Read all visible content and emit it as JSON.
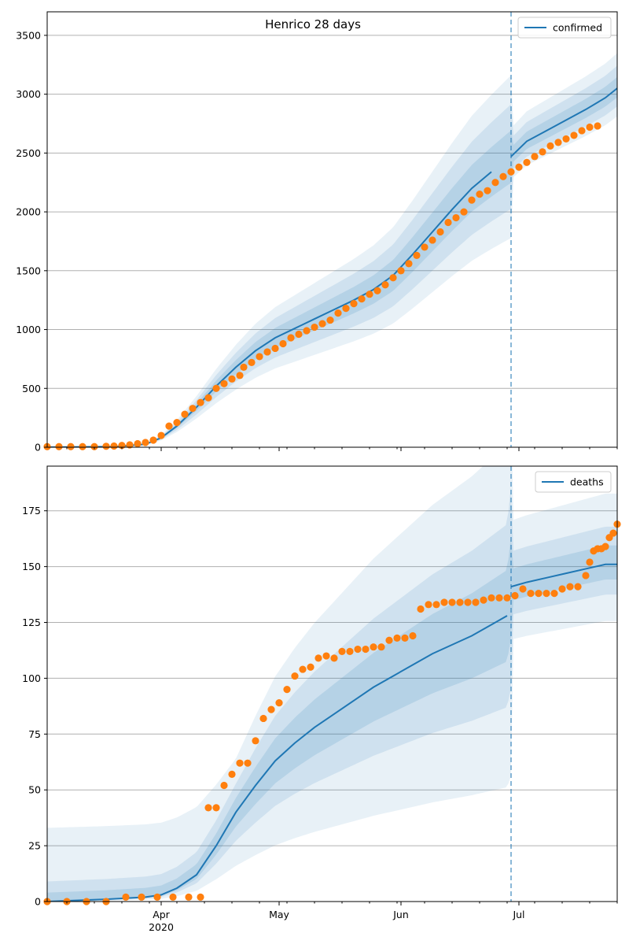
{
  "figure": {
    "title": "Henrico 28 days"
  },
  "chart_data": [
    {
      "type": "line",
      "panel": "top",
      "x_type": "date",
      "xlim": [
        "2020-03-03",
        "2020-07-26"
      ],
      "ylim": [
        0,
        3700
      ],
      "yticks": [
        0,
        500,
        1000,
        1500,
        2000,
        2500,
        3000,
        3500
      ],
      "grid": "horizontal",
      "legend_position": "top-right",
      "forecast_start": "2020-06-29",
      "colors": {
        "model": "#1f77b4",
        "observed": "#ff7f0e",
        "band": "#1f77b4"
      },
      "series": [
        {
          "name": "confirmed",
          "kind": "line",
          "points": [
            [
              "2020-03-03",
              0
            ],
            [
              "2020-03-20",
              5
            ],
            [
              "2020-03-28",
              25
            ],
            [
              "2020-04-01",
              80
            ],
            [
              "2020-04-05",
              180
            ],
            [
              "2020-04-10",
              340
            ],
            [
              "2020-04-15",
              520
            ],
            [
              "2020-04-20",
              680
            ],
            [
              "2020-04-25",
              820
            ],
            [
              "2020-04-30",
              930
            ],
            [
              "2020-05-05",
              1010
            ],
            [
              "2020-05-10",
              1090
            ],
            [
              "2020-05-15",
              1170
            ],
            [
              "2020-05-20",
              1250
            ],
            [
              "2020-05-25",
              1340
            ],
            [
              "2020-05-30",
              1460
            ],
            [
              "2020-06-04",
              1640
            ],
            [
              "2020-06-09",
              1830
            ],
            [
              "2020-06-14",
              2020
            ],
            [
              "2020-06-19",
              2200
            ],
            [
              "2020-06-24",
              2340
            ],
            [
              "2020-06-29",
              2470
            ],
            [
              "2020-07-03",
              2600
            ],
            [
              "2020-07-08",
              2690
            ],
            [
              "2020-07-13",
              2780
            ],
            [
              "2020-07-18",
              2870
            ],
            [
              "2020-07-23",
              2970
            ],
            [
              "2020-07-26",
              3050
            ]
          ]
        },
        {
          "name": "",
          "kind": "scatter",
          "points": [
            [
              "2020-03-03",
              5
            ],
            [
              "2020-03-06",
              5
            ],
            [
              "2020-03-09",
              5
            ],
            [
              "2020-03-12",
              5
            ],
            [
              "2020-03-15",
              5
            ],
            [
              "2020-03-18",
              8
            ],
            [
              "2020-03-20",
              10
            ],
            [
              "2020-03-22",
              15
            ],
            [
              "2020-03-24",
              20
            ],
            [
              "2020-03-26",
              30
            ],
            [
              "2020-03-28",
              40
            ],
            [
              "2020-03-30",
              60
            ],
            [
              "2020-04-01",
              100
            ],
            [
              "2020-04-03",
              180
            ],
            [
              "2020-04-05",
              210
            ],
            [
              "2020-04-07",
              280
            ],
            [
              "2020-04-09",
              330
            ],
            [
              "2020-04-11",
              380
            ],
            [
              "2020-04-13",
              420
            ],
            [
              "2020-04-15",
              500
            ],
            [
              "2020-04-17",
              540
            ],
            [
              "2020-04-19",
              580
            ],
            [
              "2020-04-21",
              610
            ],
            [
              "2020-04-22",
              680
            ],
            [
              "2020-04-24",
              720
            ],
            [
              "2020-04-26",
              770
            ],
            [
              "2020-04-28",
              810
            ],
            [
              "2020-04-30",
              840
            ],
            [
              "2020-05-02",
              880
            ],
            [
              "2020-05-04",
              930
            ],
            [
              "2020-05-06",
              960
            ],
            [
              "2020-05-08",
              990
            ],
            [
              "2020-05-10",
              1020
            ],
            [
              "2020-05-12",
              1050
            ],
            [
              "2020-05-14",
              1080
            ],
            [
              "2020-05-16",
              1140
            ],
            [
              "2020-05-18",
              1180
            ],
            [
              "2020-05-20",
              1220
            ],
            [
              "2020-05-22",
              1260
            ],
            [
              "2020-05-24",
              1300
            ],
            [
              "2020-05-26",
              1330
            ],
            [
              "2020-05-28",
              1380
            ],
            [
              "2020-05-30",
              1440
            ],
            [
              "2020-06-01",
              1500
            ],
            [
              "2020-06-03",
              1560
            ],
            [
              "2020-06-05",
              1630
            ],
            [
              "2020-06-07",
              1700
            ],
            [
              "2020-06-09",
              1760
            ],
            [
              "2020-06-11",
              1830
            ],
            [
              "2020-06-13",
              1910
            ],
            [
              "2020-06-15",
              1950
            ],
            [
              "2020-06-17",
              2000
            ],
            [
              "2020-06-19",
              2100
            ],
            [
              "2020-06-21",
              2150
            ],
            [
              "2020-06-23",
              2180
            ],
            [
              "2020-06-25",
              2250
            ],
            [
              "2020-06-27",
              2300
            ],
            [
              "2020-06-29",
              2340
            ],
            [
              "2020-07-01",
              2380
            ],
            [
              "2020-07-03",
              2420
            ],
            [
              "2020-07-05",
              2470
            ],
            [
              "2020-07-07",
              2510
            ],
            [
              "2020-07-09",
              2560
            ],
            [
              "2020-07-11",
              2590
            ],
            [
              "2020-07-13",
              2620
            ],
            [
              "2020-07-15",
              2650
            ],
            [
              "2020-07-17",
              2690
            ],
            [
              "2020-07-19",
              2720
            ],
            [
              "2020-07-21",
              2730
            ]
          ]
        }
      ]
    },
    {
      "type": "line",
      "panel": "bottom",
      "x_type": "date",
      "xlim": [
        "2020-03-03",
        "2020-07-26"
      ],
      "ylim": [
        0,
        195
      ],
      "yticks": [
        0,
        25,
        50,
        75,
        100,
        125,
        150,
        175
      ],
      "xticks": [
        {
          "date": "2020-04-01",
          "label": "Apr",
          "sublabel": "2020"
        },
        {
          "date": "2020-05-01",
          "label": "May",
          "sublabel": ""
        },
        {
          "date": "2020-06-01",
          "label": "Jun",
          "sublabel": ""
        },
        {
          "date": "2020-07-01",
          "label": "Jul",
          "sublabel": ""
        }
      ],
      "grid": "horizontal",
      "legend_position": "top-right",
      "forecast_start": "2020-06-29",
      "colors": {
        "model": "#1f77b4",
        "observed": "#ff7f0e",
        "band": "#1f77b4"
      },
      "series": [
        {
          "name": "deaths",
          "kind": "line",
          "points": [
            [
              "2020-03-03",
              0
            ],
            [
              "2020-03-18",
              1
            ],
            [
              "2020-03-28",
              2
            ],
            [
              "2020-04-01",
              3
            ],
            [
              "2020-04-05",
              6
            ],
            [
              "2020-04-10",
              12
            ],
            [
              "2020-04-15",
              25
            ],
            [
              "2020-04-20",
              40
            ],
            [
              "2020-04-25",
              52
            ],
            [
              "2020-04-30",
              63
            ],
            [
              "2020-05-05",
              71
            ],
            [
              "2020-05-10",
              78
            ],
            [
              "2020-05-15",
              84
            ],
            [
              "2020-05-20",
              90
            ],
            [
              "2020-05-25",
              96
            ],
            [
              "2020-05-30",
              101
            ],
            [
              "2020-06-04",
              106
            ],
            [
              "2020-06-09",
              111
            ],
            [
              "2020-06-14",
              115
            ],
            [
              "2020-06-19",
              119
            ],
            [
              "2020-06-24",
              124
            ],
            [
              "2020-06-28",
              128
            ],
            [
              "2020-06-29",
              141
            ],
            [
              "2020-07-03",
              143
            ],
            [
              "2020-07-08",
              145
            ],
            [
              "2020-07-13",
              147
            ],
            [
              "2020-07-18",
              149
            ],
            [
              "2020-07-23",
              151
            ],
            [
              "2020-07-26",
              151
            ]
          ]
        },
        {
          "name": "",
          "kind": "scatter",
          "points": [
            [
              "2020-03-03",
              0
            ],
            [
              "2020-03-08",
              0
            ],
            [
              "2020-03-13",
              0
            ],
            [
              "2020-03-18",
              0
            ],
            [
              "2020-03-23",
              2
            ],
            [
              "2020-03-27",
              2
            ],
            [
              "2020-03-31",
              2
            ],
            [
              "2020-04-04",
              2
            ],
            [
              "2020-04-08",
              2
            ],
            [
              "2020-04-11",
              2
            ],
            [
              "2020-04-13",
              42
            ],
            [
              "2020-04-15",
              42
            ],
            [
              "2020-04-17",
              52
            ],
            [
              "2020-04-19",
              57
            ],
            [
              "2020-04-21",
              62
            ],
            [
              "2020-04-23",
              62
            ],
            [
              "2020-04-25",
              72
            ],
            [
              "2020-04-27",
              82
            ],
            [
              "2020-04-29",
              86
            ],
            [
              "2020-05-01",
              89
            ],
            [
              "2020-05-03",
              95
            ],
            [
              "2020-05-05",
              101
            ],
            [
              "2020-05-07",
              104
            ],
            [
              "2020-05-09",
              105
            ],
            [
              "2020-05-11",
              109
            ],
            [
              "2020-05-13",
              110
            ],
            [
              "2020-05-15",
              109
            ],
            [
              "2020-05-17",
              112
            ],
            [
              "2020-05-19",
              112
            ],
            [
              "2020-05-21",
              113
            ],
            [
              "2020-05-23",
              113
            ],
            [
              "2020-05-25",
              114
            ],
            [
              "2020-05-27",
              114
            ],
            [
              "2020-05-29",
              117
            ],
            [
              "2020-05-31",
              118
            ],
            [
              "2020-06-02",
              118
            ],
            [
              "2020-06-04",
              119
            ],
            [
              "2020-06-06",
              131
            ],
            [
              "2020-06-08",
              133
            ],
            [
              "2020-06-10",
              133
            ],
            [
              "2020-06-12",
              134
            ],
            [
              "2020-06-14",
              134
            ],
            [
              "2020-06-16",
              134
            ],
            [
              "2020-06-18",
              134
            ],
            [
              "2020-06-20",
              134
            ],
            [
              "2020-06-22",
              135
            ],
            [
              "2020-06-24",
              136
            ],
            [
              "2020-06-26",
              136
            ],
            [
              "2020-06-28",
              136
            ],
            [
              "2020-06-30",
              137
            ],
            [
              "2020-07-02",
              140
            ],
            [
              "2020-07-04",
              138
            ],
            [
              "2020-07-06",
              138
            ],
            [
              "2020-07-08",
              138
            ],
            [
              "2020-07-10",
              138
            ],
            [
              "2020-07-12",
              140
            ],
            [
              "2020-07-14",
              141
            ],
            [
              "2020-07-16",
              141
            ],
            [
              "2020-07-18",
              146
            ],
            [
              "2020-07-19",
              152
            ],
            [
              "2020-07-20",
              157
            ],
            [
              "2020-07-21",
              158
            ],
            [
              "2020-07-22",
              158
            ],
            [
              "2020-07-23",
              159
            ],
            [
              "2020-07-24",
              163
            ],
            [
              "2020-07-25",
              165
            ],
            [
              "2020-07-26",
              169
            ]
          ]
        }
      ]
    }
  ]
}
